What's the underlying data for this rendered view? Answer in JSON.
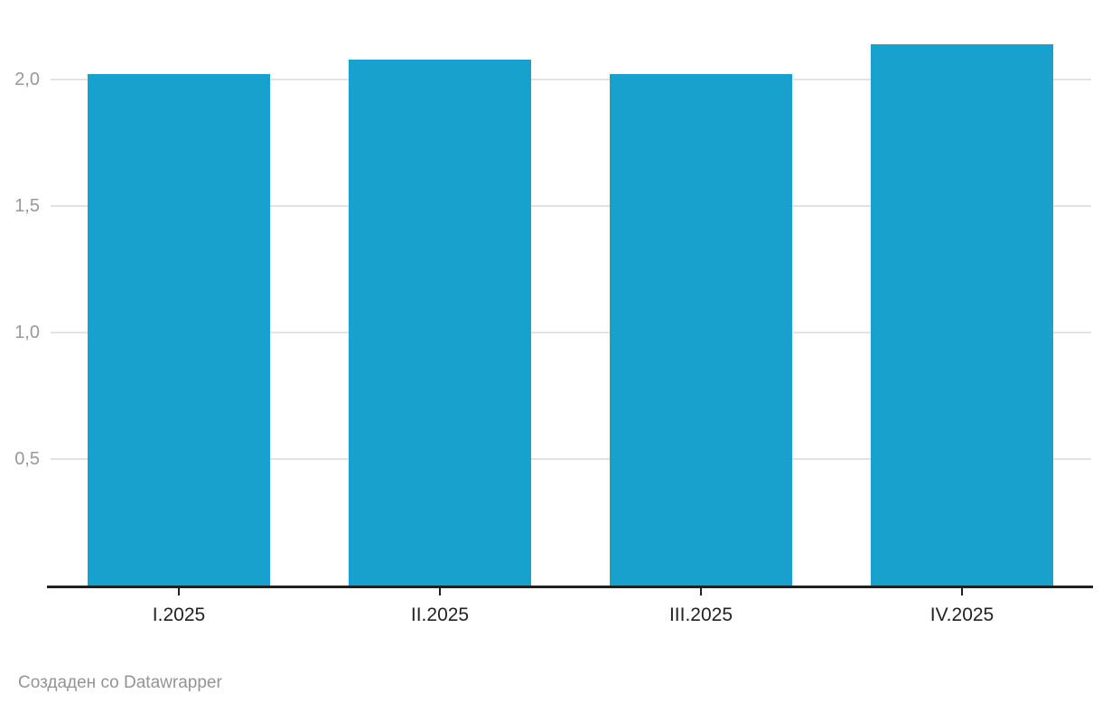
{
  "chart_data": {
    "type": "bar",
    "categories": [
      "I.2025",
      "II.2025",
      "III.2025",
      "IV.2025"
    ],
    "values": [
      2.02,
      2.08,
      2.02,
      2.14
    ],
    "xlabel": "",
    "ylabel": "",
    "ylim": [
      0,
      2.25
    ],
    "y_ticks": [
      {
        "value": 0.5,
        "label": "0,5"
      },
      {
        "value": 1.0,
        "label": "1,0"
      },
      {
        "value": 1.5,
        "label": "1,5"
      },
      {
        "value": 2.0,
        "label": "2,0"
      }
    ],
    "grid": true,
    "legend": false,
    "decimal_separator": ","
  },
  "colors": {
    "bar": "#18a1cd",
    "gridline": "#e2e2e2",
    "axis_line": "#212121",
    "y_tick_label": "#999999",
    "x_tick_label": "#222222",
    "footer_text": "#949494"
  },
  "footer": {
    "attribution": "Создаден со Datawrapper"
  }
}
